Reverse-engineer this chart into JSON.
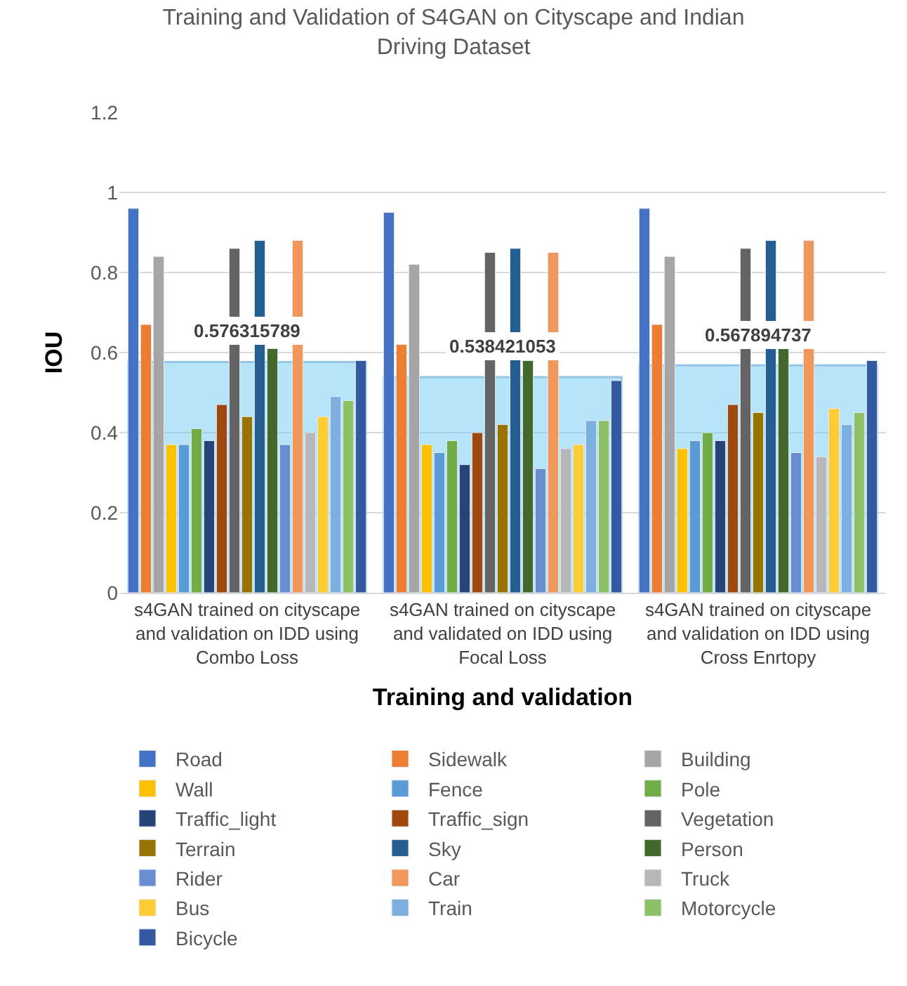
{
  "chart_data": {
    "type": "bar",
    "title": "Training and Validation of S4GAN on Cityscape and Indian Driving Dataset",
    "xlabel": "Training and validation",
    "ylabel": "IOU",
    "categories": [
      "s4GAN trained on cityscape and validation on IDD using Combo Loss",
      "s4GAN trained on cityscape and validated on IDD using Focal Loss",
      "s4GAN trained on cityscape and validation on IDD using Cross Enrtopy"
    ],
    "ylim": [
      0,
      1.2
    ],
    "yticks": [
      0,
      0.2,
      0.4,
      0.6,
      0.8,
      1,
      1.2
    ],
    "grid": "y",
    "legend": "bottom",
    "series": [
      {
        "name": "Road",
        "color": "#4472c4",
        "values": [
          0.96,
          0.95,
          0.96
        ]
      },
      {
        "name": "Sidewalk",
        "color": "#ed7d31",
        "values": [
          0.67,
          0.62,
          0.67
        ]
      },
      {
        "name": "Building",
        "color": "#a5a5a5",
        "values": [
          0.84,
          0.82,
          0.84
        ]
      },
      {
        "name": "Wall",
        "color": "#ffc000",
        "values": [
          0.37,
          0.37,
          0.36
        ]
      },
      {
        "name": "Fence",
        "color": "#5b9bd5",
        "values": [
          0.37,
          0.35,
          0.38
        ]
      },
      {
        "name": "Pole",
        "color": "#70ad47",
        "values": [
          0.41,
          0.38,
          0.4
        ]
      },
      {
        "name": "Traffic_light",
        "color": "#264478",
        "values": [
          0.38,
          0.32,
          0.38
        ]
      },
      {
        "name": "Traffic_sign",
        "color": "#9e480e",
        "values": [
          0.47,
          0.4,
          0.47
        ]
      },
      {
        "name": "Vegetation",
        "color": "#636363",
        "values": [
          0.86,
          0.85,
          0.86
        ]
      },
      {
        "name": "Terrain",
        "color": "#997300",
        "values": [
          0.44,
          0.42,
          0.45
        ]
      },
      {
        "name": "Sky",
        "color": "#255e91",
        "values": [
          0.88,
          0.86,
          0.88
        ]
      },
      {
        "name": "Person",
        "color": "#43682b",
        "values": [
          0.61,
          0.58,
          0.61
        ]
      },
      {
        "name": "Rider",
        "color": "#698ed0",
        "values": [
          0.37,
          0.31,
          0.35
        ]
      },
      {
        "name": "Car",
        "color": "#f1975a",
        "values": [
          0.88,
          0.85,
          0.88
        ]
      },
      {
        "name": "Truck",
        "color": "#b7b7b7",
        "values": [
          0.4,
          0.36,
          0.34
        ]
      },
      {
        "name": "Bus",
        "color": "#ffcd33",
        "values": [
          0.44,
          0.37,
          0.46
        ]
      },
      {
        "name": "Train",
        "color": "#7cafdd",
        "values": [
          0.49,
          0.43,
          0.42
        ]
      },
      {
        "name": "Motorcycle",
        "color": "#8cc168",
        "values": [
          0.48,
          0.43,
          0.45
        ]
      },
      {
        "name": "Bicycle",
        "color": "#335aa1",
        "values": [
          0.58,
          0.53,
          0.58
        ]
      },
      {
        "color": "#5ec4f2",
        "values": [
          0.576315789,
          0.538421053,
          0.567894737
        ],
        "value_labels": [
          "0.576315789",
          "0.538421053",
          "0.567894737"
        ]
      }
    ]
  }
}
